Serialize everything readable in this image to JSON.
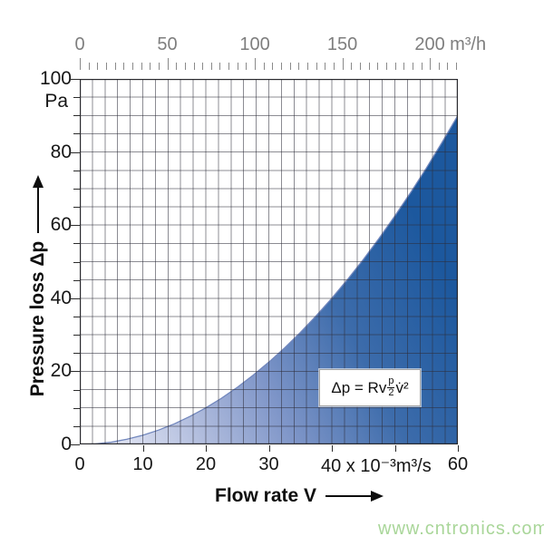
{
  "top_axis": {
    "unit": "m³/h",
    "tick_labels": [
      {
        "value": 0,
        "label": "0"
      },
      {
        "value": 50,
        "label": "50"
      },
      {
        "value": 100,
        "label": "100"
      },
      {
        "value": 150,
        "label": "150"
      },
      {
        "value": 200,
        "label": "200"
      }
    ],
    "minor_step": 5,
    "minor_max": 215,
    "major_every": 50
  },
  "y_axis": {
    "title": "Pressure loss Δp",
    "unit": "Pa",
    "range": [
      0,
      100
    ],
    "tick_labels": [
      {
        "value": 100,
        "label": "100"
      },
      {
        "value": 80,
        "label": "80"
      },
      {
        "value": 60,
        "label": "60"
      },
      {
        "value": 40,
        "label": "40"
      },
      {
        "value": 20,
        "label": "20"
      },
      {
        "value": 0,
        "label": "0"
      }
    ],
    "minor_step": 5,
    "major_every": 20,
    "grid_step": 5
  },
  "x_axis": {
    "title": "Flow rate V",
    "range": [
      0,
      60
    ],
    "tick_values": [
      10,
      20,
      30,
      40,
      50,
      60
    ],
    "labels": [
      {
        "value": 0,
        "label": "0",
        "align": "center"
      },
      {
        "value": 10,
        "label": "10",
        "align": "center"
      },
      {
        "value": 20,
        "label": "20",
        "align": "center"
      },
      {
        "value": 30,
        "label": "30",
        "align": "center"
      },
      {
        "value": 40,
        "label": "40 x 10⁻³m³/s",
        "align": "left"
      },
      {
        "value": 60,
        "label": "60",
        "align": "center"
      }
    ],
    "grid_step": 2
  },
  "formula": {
    "prefix": "Δp = Rv",
    "numerator": "p",
    "denominator": "2",
    "suffix": "v̇²"
  },
  "watermark": {
    "text": "www.cntronics.com"
  },
  "colors": {
    "fill_dark": "#1c589e",
    "fill_mid": "#3d6cab",
    "fill_light": "#e8ebf5",
    "curve_stroke": "#7287bd",
    "grid": "rgba(45,45,58,0.55)",
    "border": "#2a2a2e",
    "top_axis_text": "#7e7e7e",
    "axis_text": "#161616",
    "watermark_green": "#a9d699"
  },
  "chart_data": {
    "type": "area",
    "title": "",
    "xlabel": "Flow rate V (x 10⁻³ m³/s), top scale m³/h",
    "ylabel": "Pressure loss Δp (Pa)",
    "xlim": [
      0,
      60
    ],
    "ylim": [
      0,
      100
    ],
    "top_scale_lim_m3h": [
      0,
      216
    ],
    "grid": true,
    "relation": "Δp = 0.025 · V²  (quadratic, Δp = Rv · p/2 · v̇²)",
    "x": [
      0,
      2.5,
      5,
      7.5,
      10,
      12.5,
      15,
      17.5,
      20,
      22.5,
      25,
      27.5,
      30,
      32.5,
      35,
      37.5,
      40,
      42.5,
      45,
      47.5,
      50,
      52.5,
      55,
      57.5,
      60
    ],
    "y": [
      0,
      0.16,
      0.63,
      1.41,
      2.5,
      3.91,
      5.63,
      7.66,
      10,
      12.66,
      15.63,
      18.91,
      22.5,
      26.41,
      30.63,
      35.16,
      40,
      45.16,
      50.63,
      56.41,
      62.5,
      68.91,
      75.63,
      82.66,
      90
    ]
  }
}
